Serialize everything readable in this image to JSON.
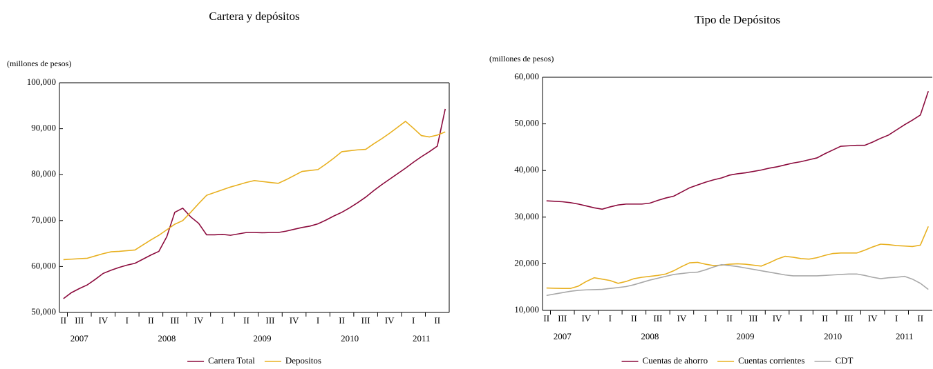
{
  "chart_data": [
    {
      "type": "line",
      "title": "Cartera y depósitos",
      "y_label": "(millones de pesos)",
      "categories": [
        "II",
        null,
        "III",
        null,
        null,
        "IV",
        null,
        null,
        "I",
        null,
        null,
        "II",
        null,
        null,
        "III",
        null,
        null,
        "IV",
        null,
        null,
        "I",
        null,
        null,
        "II",
        null,
        null,
        "III",
        null,
        null,
        "IV",
        null,
        null,
        "I",
        null,
        null,
        "II",
        null,
        null,
        "III",
        null,
        null,
        "IV",
        null,
        null,
        "I",
        null,
        null,
        "II",
        null
      ],
      "year_categories": [
        null,
        null,
        "2007",
        null,
        null,
        null,
        null,
        null,
        null,
        null,
        null,
        null,
        null,
        "2008",
        null,
        null,
        null,
        null,
        null,
        null,
        null,
        null,
        null,
        null,
        null,
        "2009",
        null,
        null,
        null,
        null,
        null,
        null,
        null,
        null,
        null,
        null,
        "2010",
        null,
        null,
        null,
        null,
        null,
        null,
        null,
        null,
        "2011",
        null,
        null,
        null
      ],
      "ylim": [
        50000,
        100000
      ],
      "yticks": [
        {
          "value": 50000,
          "label": "50,000"
        },
        {
          "value": 60000,
          "label": "60,000"
        },
        {
          "value": 70000,
          "label": "70,000"
        },
        {
          "value": 80000,
          "label": "80,000"
        },
        {
          "value": 90000,
          "label": "90,000"
        },
        {
          "value": 100000,
          "label": "100,000"
        }
      ],
      "series": [
        {
          "name": "Cartera Total",
          "color": "#8b0a3c",
          "values": [
            53000,
            54300,
            55200,
            56000,
            57200,
            58500,
            59200,
            59800,
            60300,
            60700,
            61600,
            62500,
            63300,
            66500,
            71800,
            72700,
            70800,
            69400,
            66900,
            66900,
            67000,
            66800,
            67100,
            67400,
            67400,
            67350,
            67400,
            67400,
            67700,
            68100,
            68500,
            68800,
            69300,
            70100,
            71000,
            71800,
            72800,
            73900,
            75100,
            76500,
            77800,
            79000,
            80200,
            81400,
            82700,
            83900,
            85000,
            86200,
            94300
          ]
        },
        {
          "name": "Depositos",
          "color": "#e8b020",
          "values": [
            61500,
            61600,
            61700,
            61800,
            62300,
            62800,
            63200,
            63300,
            63450,
            63600,
            64700,
            65800,
            66800,
            68000,
            69200,
            70000,
            71800,
            73700,
            75500,
            76100,
            76700,
            77300,
            77800,
            78300,
            78700,
            78500,
            78300,
            78100,
            78900,
            79800,
            80700,
            80900,
            81100,
            82300,
            83600,
            85000,
            85200,
            85400,
            85500,
            86700,
            87800,
            89000,
            90300,
            91600,
            90100,
            88500,
            88200,
            88600,
            89300
          ]
        }
      ]
    },
    {
      "type": "line",
      "title": "Tipo de Depósitos",
      "y_label": "(millones de pesos)",
      "categories": [
        "II",
        null,
        "III",
        null,
        null,
        "IV",
        null,
        null,
        "I",
        null,
        null,
        "II",
        null,
        null,
        "III",
        null,
        null,
        "IV",
        null,
        null,
        "I",
        null,
        null,
        "II",
        null,
        null,
        "III",
        null,
        null,
        "IV",
        null,
        null,
        "I",
        null,
        null,
        "II",
        null,
        null,
        "III",
        null,
        null,
        "IV",
        null,
        null,
        "I",
        null,
        null,
        "II",
        null
      ],
      "year_categories": [
        null,
        null,
        "2007",
        null,
        null,
        null,
        null,
        null,
        null,
        null,
        null,
        null,
        null,
        "2008",
        null,
        null,
        null,
        null,
        null,
        null,
        null,
        null,
        null,
        null,
        null,
        "2009",
        null,
        null,
        null,
        null,
        null,
        null,
        null,
        null,
        null,
        null,
        "2010",
        null,
        null,
        null,
        null,
        null,
        null,
        null,
        null,
        "2011",
        null,
        null,
        null
      ],
      "ylim": [
        10000,
        60000
      ],
      "yticks": [
        {
          "value": 10000,
          "label": "10,000"
        },
        {
          "value": 20000,
          "label": "20,000"
        },
        {
          "value": 30000,
          "label": "30,000"
        },
        {
          "value": 40000,
          "label": "40,000"
        },
        {
          "value": 50000,
          "label": "50,000"
        },
        {
          "value": 60000,
          "label": "60,000"
        }
      ],
      "series": [
        {
          "name": "Cuentas de ahorro",
          "color": "#8b0a3c",
          "values": [
            33500,
            33400,
            33300,
            33100,
            32800,
            32400,
            32000,
            31700,
            32200,
            32600,
            32800,
            32800,
            32800,
            33000,
            33600,
            34100,
            34500,
            35400,
            36300,
            36900,
            37500,
            38000,
            38400,
            39000,
            39300,
            39500,
            39800,
            40100,
            40500,
            40800,
            41200,
            41600,
            41900,
            42300,
            42700,
            43600,
            44400,
            45200,
            45300,
            45400,
            45400,
            46100,
            46900,
            47600,
            48700,
            49800,
            50800,
            51900,
            57000
          ]
        },
        {
          "name": "Cuentas corrientes",
          "color": "#e8b020",
          "values": [
            14800,
            14750,
            14700,
            14700,
            15200,
            16200,
            17000,
            16700,
            16400,
            15800,
            16200,
            16800,
            17100,
            17300,
            17500,
            17800,
            18500,
            19400,
            20200,
            20300,
            19900,
            19600,
            19700,
            19900,
            20000,
            19900,
            19700,
            19500,
            20200,
            21000,
            21600,
            21400,
            21100,
            21000,
            21300,
            21800,
            22200,
            22300,
            22300,
            22300,
            22900,
            23600,
            24200,
            24100,
            23900,
            23800,
            23700,
            24000,
            28000
          ]
        },
        {
          "name": "CDT",
          "color": "#a8a8a8",
          "values": [
            13200,
            13500,
            13800,
            14100,
            14300,
            14400,
            14450,
            14500,
            14700,
            14900,
            15100,
            15500,
            16000,
            16500,
            16900,
            17300,
            17700,
            17900,
            18100,
            18200,
            18700,
            19300,
            19800,
            19600,
            19400,
            19100,
            18800,
            18500,
            18200,
            17900,
            17600,
            17400,
            17400,
            17400,
            17400,
            17500,
            17600,
            17700,
            17800,
            17800,
            17500,
            17100,
            16800,
            17000,
            17100,
            17300,
            16700,
            15800,
            14500
          ]
        }
      ]
    }
  ]
}
